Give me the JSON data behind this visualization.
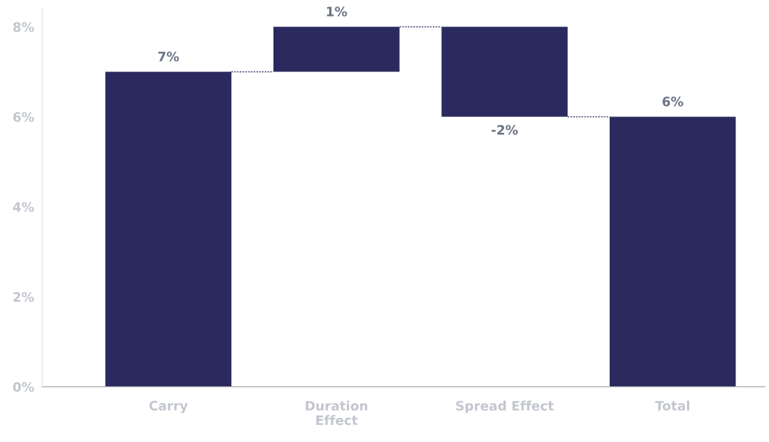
{
  "chart_data": {
    "type": "bar",
    "categories": [
      "Carry",
      "Duration\nEffect",
      "Spread Effect",
      "Total"
    ],
    "values": [
      7,
      1,
      -2,
      6
    ],
    "base": [
      0,
      7,
      8,
      0
    ],
    "color": "#2a2a5e",
    "value_labels": [
      "7%",
      "1%",
      "-2%",
      "6%"
    ],
    "ylim": [
      0,
      8.4
    ],
    "yticks": [
      {
        "value": 0,
        "label": "0%"
      },
      {
        "value": 2,
        "label": "2%"
      },
      {
        "value": 4,
        "label": "4%"
      },
      {
        "value": 6,
        "label": "6%"
      },
      {
        "value": 8,
        "label": "8%"
      }
    ],
    "grid": false,
    "legend": false
  }
}
